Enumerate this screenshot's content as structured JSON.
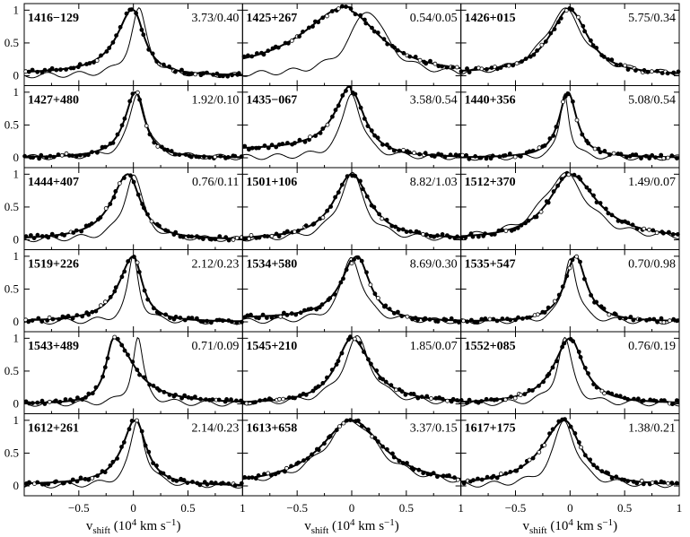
{
  "chart_data": {
    "type": "line",
    "layout": "grid of 6 rows x 3 columns of line-profile panels",
    "xlabel": {
      "main": "v",
      "sub": "shift",
      "units": "(10",
      "exp": "4",
      "units2": "km s",
      "exp2": "−1",
      "close": ")"
    },
    "xlim": [
      -1,
      1
    ],
    "ylim": [
      -0.15,
      1.1
    ],
    "xticks": [
      -0.5,
      0,
      0.5,
      1
    ],
    "xtick_labels": [
      "−0.5",
      "0",
      "0.5",
      "1"
    ],
    "yticks": [
      0,
      0.5,
      1
    ],
    "ytick_labels": [
      "0",
      "0.5",
      "1"
    ],
    "series_styles": [
      "filled dots = data",
      "open dots = rejected data",
      "thick line = fit",
      "thin line = comparison profile"
    ],
    "panels": [
      {
        "name": "1416−129",
        "ratio": "3.73/0.40",
        "center": 0.0,
        "width": 0.12,
        "asym": 1.5,
        "base_left": 0.03,
        "thin_shift": 0.05,
        "thin_width": 0.09
      },
      {
        "name": "1425+267",
        "ratio": "0.54/0.05",
        "center": -0.05,
        "width": 0.38,
        "asym": 1.3,
        "base_left": 0.05,
        "thin_shift": 0.2,
        "thin_width": 0.2
      },
      {
        "name": "1426+015",
        "ratio": "5.75/0.34",
        "center": 0.0,
        "width": 0.2,
        "asym": 1.1,
        "base_left": 0.03,
        "thin_shift": -0.05,
        "thin_width": 0.22
      },
      {
        "name": "1427+480",
        "ratio": "1.92/0.10",
        "center": 0.02,
        "width": 0.1,
        "asym": 1.2,
        "base_left": 0.0,
        "thin_shift": 0.02,
        "thin_width": 0.09
      },
      {
        "name": "1435−067",
        "ratio": "3.58/0.54",
        "center": 0.0,
        "width": 0.15,
        "asym": 1.2,
        "base_left": 0.12,
        "thin_shift": 0.0,
        "thin_width": 0.1
      },
      {
        "name": "1440+356",
        "ratio": "5.08/0.54",
        "center": -0.02,
        "width": 0.1,
        "asym": 1.0,
        "base_left": 0.0,
        "thin_shift": -0.03,
        "thin_width": 0.05
      },
      {
        "name": "1444+407",
        "ratio": "0.76/0.11",
        "center": -0.05,
        "width": 0.14,
        "asym": 1.3,
        "base_left": 0.0,
        "thin_shift": 0.05,
        "thin_width": 0.1
      },
      {
        "name": "1501+106",
        "ratio": "8.82/1.03",
        "center": 0.0,
        "width": 0.2,
        "asym": 1.0,
        "base_left": 0.0,
        "thin_shift": 0.0,
        "thin_width": 0.14
      },
      {
        "name": "1512+370",
        "ratio": "1.49/0.07",
        "center": 0.0,
        "width": 0.3,
        "asym": 0.8,
        "base_left": 0.0,
        "thin_shift": -0.05,
        "thin_width": 0.25
      },
      {
        "name": "1519+226",
        "ratio": "2.12/0.23",
        "center": 0.0,
        "width": 0.1,
        "asym": 1.6,
        "base_left": 0.0,
        "thin_shift": 0.0,
        "thin_width": 0.06
      },
      {
        "name": "1534+580",
        "ratio": "8.69/0.30",
        "center": 0.05,
        "width": 0.14,
        "asym": 1.2,
        "base_left": 0.05,
        "thin_shift": -0.05,
        "thin_width": 0.11
      },
      {
        "name": "1535+547",
        "ratio": "0.70/0.98",
        "center": 0.05,
        "width": 0.12,
        "asym": 1.0,
        "base_left": 0.0,
        "thin_shift": -0.05,
        "thin_width": 0.07
      },
      {
        "name": "1543+489",
        "ratio": "0.71/0.09",
        "center": -0.18,
        "width": 0.22,
        "asym": 0.4,
        "base_left": 0.0,
        "thin_shift": 0.22,
        "thin_width": 0.06
      },
      {
        "name": "1545+210",
        "ratio": "1.85/0.07",
        "center": 0.0,
        "width": 0.22,
        "asym": 0.8,
        "base_left": 0.0,
        "thin_shift": 0.05,
        "thin_width": 0.15
      },
      {
        "name": "1552+085",
        "ratio": "0.76/0.19",
        "center": 0.0,
        "width": 0.15,
        "asym": 1.2,
        "base_left": 0.0,
        "thin_shift": -0.05,
        "thin_width": 0.08
      },
      {
        "name": "1612+261",
        "ratio": "2.14/0.23",
        "center": 0.02,
        "width": 0.12,
        "asym": 1.2,
        "base_left": 0.02,
        "thin_shift": 0.02,
        "thin_width": 0.08
      },
      {
        "name": "1613+658",
        "ratio": "3.37/0.15",
        "center": 0.0,
        "width": 0.35,
        "asym": 1.0,
        "base_left": 0.0,
        "thin_shift": 0.0,
        "thin_width": 0.3
      },
      {
        "name": "1617+175",
        "ratio": "1.38/0.21",
        "center": -0.05,
        "width": 0.18,
        "asym": 1.4,
        "base_left": 0.0,
        "thin_shift": 0.0,
        "thin_width": 0.12
      }
    ]
  }
}
